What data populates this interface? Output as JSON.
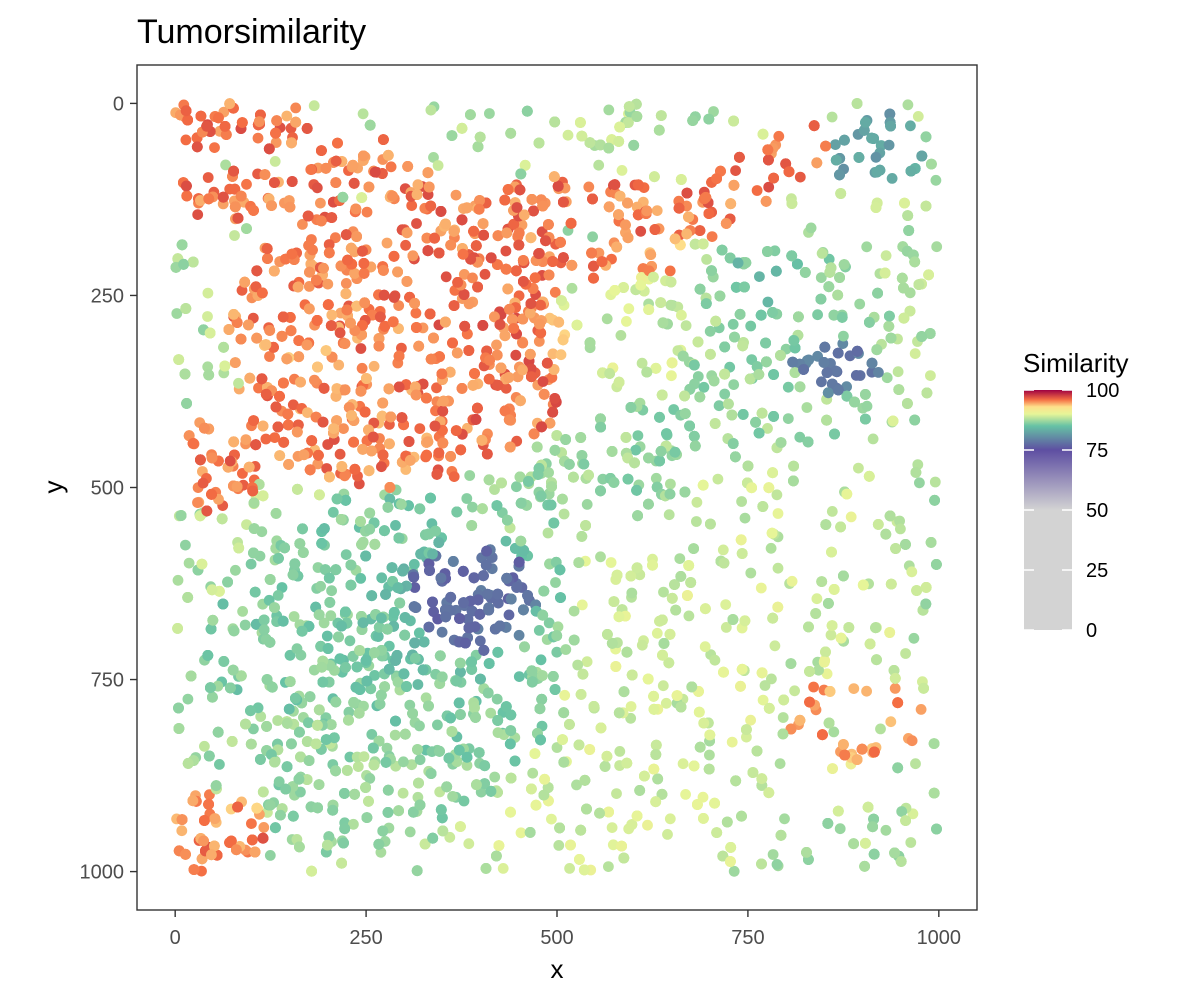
{
  "chart_data": {
    "type": "scatter",
    "title": "Tumorsimilarity",
    "xlabel": "x",
    "ylabel": "y",
    "xlim": [
      -50,
      1050
    ],
    "ylim": [
      1050,
      -50
    ],
    "y_reversed": true,
    "grid": false,
    "point_count_approx": 6000,
    "x_ticks": [
      "0",
      "250",
      "500",
      "750",
      "1000"
    ],
    "y_ticks": [
      "0",
      "250",
      "500",
      "750",
      "1000"
    ],
    "legend": {
      "title": "Similarity",
      "placement": "right",
      "range": [
        0,
        100
      ],
      "labels": [
        "100",
        "75",
        "50",
        "25",
        "0"
      ],
      "colors": {
        "0": "#d3d3d3",
        "50": "#d3d3d3",
        "75": "#5e4fa2",
        "85": "#66c2a5",
        "90": "#e6f598",
        "93": "#fee08b",
        "96": "#f46d43",
        "100": "#9e0142"
      }
    },
    "regions": [
      {
        "shape": "band",
        "points": [
          [
            20,
            20
          ],
          [
            120,
            20
          ],
          [
            250,
            80
          ],
          [
            380,
            150
          ],
          [
            520,
            120
          ],
          [
            680,
            150
          ],
          [
            820,
            60
          ]
        ],
        "width": 40,
        "similarity": 95.7,
        "density": 0.9
      },
      {
        "shape": "band",
        "points": [
          [
            30,
            120
          ],
          [
            140,
            120
          ],
          [
            250,
            175
          ],
          [
            370,
            185
          ],
          [
            520,
            210
          ],
          [
            640,
            200
          ]
        ],
        "width": 32,
        "similarity": 95.6,
        "density": 0.8
      },
      {
        "shape": "ellipse",
        "cx": 190,
        "cy": 280,
        "rx": 130,
        "ry": 120,
        "similarity": 95.5,
        "density": 0.9
      },
      {
        "shape": "ellipse",
        "cx": 260,
        "cy": 410,
        "rx": 200,
        "ry": 95,
        "similarity": 95.5,
        "density": 0.9
      },
      {
        "shape": "ellipse",
        "cx": 420,
        "cy": 330,
        "rx": 110,
        "ry": 130,
        "similarity": 95.8,
        "density": 0.95
      },
      {
        "shape": "ellipse",
        "cx": 60,
        "cy": 470,
        "rx": 50,
        "ry": 70,
        "similarity": 95.8,
        "density": 0.8
      },
      {
        "shape": "ellipse",
        "cx": 160,
        "cy": 320,
        "rx": 60,
        "ry": 50,
        "similarity": 92.5,
        "density": 0.6
      },
      {
        "shape": "ellipse",
        "cx": 60,
        "cy": 950,
        "rx": 70,
        "ry": 60,
        "similarity": 95.5,
        "density": 0.9
      },
      {
        "shape": "ring",
        "cx": 890,
        "cy": 800,
        "rx": 85,
        "ry": 55,
        "similarity": 95.2,
        "density": 0.7
      },
      {
        "shape": "ellipse",
        "cx": 370,
        "cy": 660,
        "rx": 130,
        "ry": 110,
        "similarity": 76.5,
        "density": 1.0
      },
      {
        "shape": "ellipse",
        "cx": 860,
        "cy": 340,
        "rx": 80,
        "ry": 45,
        "similarity": 77.5,
        "density": 0.9
      },
      {
        "shape": "ellipse",
        "cx": 920,
        "cy": 60,
        "rx": 60,
        "ry": 60,
        "similarity": 82,
        "density": 0.7
      },
      {
        "shape": "ellipse",
        "cx": 780,
        "cy": 230,
        "rx": 90,
        "ry": 60,
        "similarity": 85,
        "density": 0.6
      },
      {
        "shape": "ellipse",
        "cx": 300,
        "cy": 720,
        "rx": 260,
        "ry": 220,
        "similarity": 86,
        "density": 0.85
      },
      {
        "shape": "ellipse",
        "cx": 230,
        "cy": 850,
        "rx": 200,
        "ry": 130,
        "similarity": 87,
        "density": 0.7
      },
      {
        "shape": "band",
        "points": [
          [
            450,
            520
          ],
          [
            560,
            470
          ],
          [
            680,
            420
          ],
          [
            800,
            360
          ],
          [
            900,
            300
          ]
        ],
        "width": 75,
        "similarity": 87,
        "density": 0.6
      },
      {
        "shape": "ellipse",
        "cx": 760,
        "cy": 300,
        "rx": 200,
        "ry": 160,
        "similarity": 87,
        "density": 0.5
      },
      {
        "shape": "ellipse",
        "cx": 600,
        "cy": 800,
        "rx": 300,
        "ry": 220,
        "similarity": 89,
        "density": 0.35
      },
      {
        "shape": "ellipse",
        "cx": 820,
        "cy": 600,
        "rx": 170,
        "ry": 170,
        "similarity": 89,
        "density": 0.3
      },
      {
        "shape": "ellipse",
        "cx": 620,
        "cy": 300,
        "rx": 140,
        "ry": 120,
        "similarity": 89,
        "density": 0.45
      },
      {
        "shape": "ellipse",
        "cx": 960,
        "cy": 250,
        "rx": 40,
        "ry": 200,
        "similarity": 88,
        "density": 0.4
      }
    ]
  }
}
